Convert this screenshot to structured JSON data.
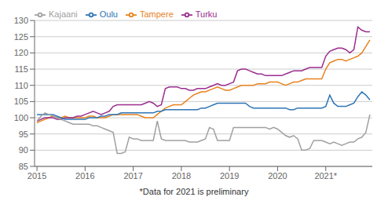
{
  "chart_data": {
    "type": "line",
    "xlabel": "*Data for 2021 is preliminary",
    "x": [
      2015,
      2015.0833333333333,
      2015.1666666666667,
      2015.25,
      2015.3333333333333,
      2015.4166666666667,
      2015.5,
      2015.5833333333333,
      2015.6666666666667,
      2015.75,
      2015.8333333333333,
      2015.9166666666667,
      2016,
      2016.0833333333333,
      2016.1666666666667,
      2016.25,
      2016.3333333333333,
      2016.4166666666667,
      2016.5,
      2016.5833333333333,
      2016.6666666666667,
      2016.75,
      2016.8333333333333,
      2016.9166666666667,
      2017,
      2017.0833333333333,
      2017.1666666666667,
      2017.25,
      2017.3333333333333,
      2017.4166666666667,
      2017.5,
      2017.5833333333333,
      2017.6666666666667,
      2017.75,
      2017.8333333333333,
      2017.9166666666667,
      2018,
      2018.0833333333333,
      2018.1666666666667,
      2018.25,
      2018.3333333333333,
      2018.4166666666667,
      2018.5,
      2018.5833333333333,
      2018.6666666666667,
      2018.75,
      2018.8333333333333,
      2018.9166666666667,
      2019,
      2019.0833333333333,
      2019.1666666666667,
      2019.25,
      2019.3333333333333,
      2019.4166666666667,
      2019.5,
      2019.5833333333333,
      2019.6666666666667,
      2019.75,
      2019.8333333333333,
      2019.9166666666667,
      2020,
      2020.0833333333333,
      2020.1666666666667,
      2020.25,
      2020.3333333333333,
      2020.4166666666667,
      2020.5,
      2020.5833333333333,
      2020.6666666666667,
      2020.75,
      2020.8333333333333,
      2020.9166666666667,
      2021,
      2021.0833333333333,
      2021.1666666666667,
      2021.25,
      2021.3333333333333,
      2021.4166666666667,
      2021.5,
      2021.5833333333333,
      2021.6666666666667,
      2021.75,
      2021.8333333333333,
      2021.9166666666667
    ],
    "xlim": [
      2014.95,
      2021.9666666666667
    ],
    "xticks": [
      2015,
      2016,
      2017,
      2018,
      2019,
      2020,
      {
        "value": 2021,
        "label": "2021*"
      }
    ],
    "ylim": [
      85,
      130
    ],
    "yticks": [
      85,
      90,
      95,
      100,
      105,
      110,
      115,
      120,
      125,
      130
    ],
    "grid": true,
    "legend": "upper left",
    "series": [
      {
        "name": "Tampere",
        "color": "#E8821C",
        "values": [
          98.5,
          99.0,
          99.5,
          100.0,
          100.5,
          100.0,
          100.0,
          100.5,
          100.0,
          100.0,
          100.0,
          100.0,
          100.0,
          100.5,
          100.5,
          100.0,
          100.0,
          100.0,
          100.5,
          101.0,
          101.0,
          101.0,
          101.0,
          101.0,
          101.0,
          101.0,
          100.5,
          100.0,
          100.0,
          100.0,
          101.0,
          102.0,
          103.0,
          103.5,
          104.0,
          104.0,
          104.0,
          105.0,
          106.0,
          107.0,
          107.5,
          108.0,
          108.0,
          108.5,
          109.0,
          109.5,
          109.0,
          108.5,
          108.5,
          109.0,
          109.5,
          110.0,
          110.0,
          110.0,
          110.0,
          110.5,
          110.5,
          110.5,
          111.0,
          111.0,
          111.0,
          110.5,
          110.0,
          110.5,
          111.0,
          111.0,
          111.5,
          112.0,
          112.0,
          112.0,
          112.0,
          112.0,
          115.0,
          117.0,
          117.5,
          118.0,
          118.0,
          117.5,
          118.0,
          118.5,
          119.0,
          120.0,
          122.0,
          124.0
        ]
      },
      {
        "name": "Turku",
        "color": "#9B2D8E",
        "values": [
          99.0,
          99.5,
          100.0,
          100.0,
          100.0,
          99.5,
          99.5,
          100.0,
          100.0,
          100.0,
          100.5,
          100.5,
          101.0,
          101.5,
          102.0,
          101.5,
          101.0,
          101.5,
          102.0,
          103.5,
          104.0,
          104.0,
          104.0,
          104.0,
          104.0,
          104.0,
          104.0,
          104.5,
          105.0,
          104.5,
          103.5,
          104.0,
          109.0,
          109.5,
          109.5,
          109.5,
          109.0,
          109.0,
          108.5,
          108.5,
          109.0,
          109.0,
          109.0,
          109.5,
          110.0,
          110.5,
          110.0,
          110.0,
          110.5,
          111.0,
          114.5,
          115.0,
          115.0,
          114.5,
          114.0,
          113.5,
          113.5,
          113.0,
          113.0,
          113.0,
          113.0,
          113.0,
          113.5,
          114.0,
          114.5,
          114.5,
          114.5,
          115.0,
          115.5,
          115.5,
          115.5,
          115.5,
          119.0,
          120.5,
          121.0,
          121.5,
          121.5,
          121.0,
          120.0,
          121.0,
          128.0,
          127.0,
          126.5,
          126.5
        ]
      },
      {
        "name": "Oulu",
        "color": "#2E75B6",
        "values": [
          101.0,
          101.0,
          101.0,
          101.0,
          101.0,
          100.5,
          100.0,
          99.5,
          99.5,
          99.5,
          99.5,
          99.5,
          99.5,
          100.0,
          100.0,
          100.0,
          100.5,
          100.5,
          101.0,
          101.0,
          101.0,
          101.5,
          101.5,
          101.5,
          101.5,
          101.5,
          101.5,
          101.5,
          101.5,
          101.5,
          102.0,
          102.0,
          102.5,
          102.5,
          102.5,
          102.5,
          102.5,
          102.5,
          102.5,
          102.5,
          102.5,
          103.0,
          103.0,
          103.5,
          104.0,
          104.5,
          104.5,
          104.5,
          104.5,
          104.5,
          104.5,
          104.5,
          104.5,
          103.5,
          103.0,
          103.0,
          103.0,
          103.0,
          103.0,
          103.0,
          103.0,
          103.0,
          103.0,
          102.5,
          102.5,
          103.0,
          103.0,
          103.0,
          103.0,
          103.0,
          103.0,
          103.0,
          103.5,
          107.0,
          104.5,
          103.5,
          103.5,
          103.5,
          104.0,
          104.5,
          106.5,
          108.0,
          107.0,
          105.5
        ]
      },
      {
        "name": "Kajaani",
        "color": "#A0A0A0",
        "values": [
          99.0,
          100.5,
          101.5,
          101.0,
          100.5,
          100.0,
          99.5,
          99.0,
          98.5,
          98.0,
          98.0,
          98.0,
          98.0,
          98.0,
          97.5,
          97.5,
          97.0,
          96.5,
          96.0,
          95.5,
          89.0,
          89.0,
          89.5,
          94.0,
          93.5,
          93.5,
          93.0,
          93.0,
          93.0,
          93.0,
          99.0,
          93.5,
          93.0,
          93.0,
          93.0,
          93.0,
          93.0,
          93.0,
          92.5,
          92.5,
          92.5,
          93.0,
          93.5,
          97.0,
          96.5,
          93.0,
          93.0,
          93.0,
          93.0,
          97.0,
          97.0,
          97.0,
          97.0,
          97.0,
          97.0,
          97.0,
          97.0,
          97.0,
          96.5,
          97.0,
          96.5,
          95.5,
          94.5,
          94.0,
          94.5,
          93.5,
          90.0,
          90.0,
          90.5,
          93.0,
          93.0,
          93.0,
          92.5,
          92.0,
          92.5,
          92.0,
          91.5,
          92.0,
          92.5,
          92.5,
          93.5,
          94.0,
          95.5,
          101.0
        ]
      }
    ]
  }
}
